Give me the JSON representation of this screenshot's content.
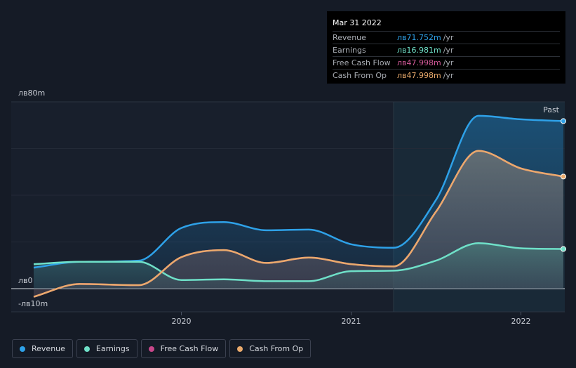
{
  "tooltip": {
    "date": "Mar 31 2022",
    "rows": [
      {
        "label": "Revenue",
        "value": "лв71.752m",
        "unit": "/yr",
        "color": "#2ea1e8"
      },
      {
        "label": "Earnings",
        "value": "лв16.981m",
        "unit": "/yr",
        "color": "#6fe0c8"
      },
      {
        "label": "Free Cash Flow",
        "value": "лв47.998m",
        "unit": "/yr",
        "color": "#d55a9a"
      },
      {
        "label": "Cash From Op",
        "value": "лв47.998m",
        "unit": "/yr",
        "color": "#eaaa6c"
      }
    ]
  },
  "legend": [
    {
      "label": "Revenue",
      "color": "#2ea1e8"
    },
    {
      "label": "Earnings",
      "color": "#6fe0c8"
    },
    {
      "label": "Free Cash Flow",
      "color": "#c8478a"
    },
    {
      "label": "Cash From Op",
      "color": "#eaaa6c"
    }
  ],
  "chart_data": {
    "type": "area",
    "y_tick_labels": [
      "лв80m",
      "лв0",
      "-лв10m"
    ],
    "y_tick_values": [
      80,
      0,
      -10
    ],
    "ylim": [
      -10,
      80
    ],
    "x_tick_labels": [
      "2020",
      "2021",
      "2022"
    ],
    "x_tick_values": [
      2020,
      2021,
      2022
    ],
    "xlim": [
      2019.13,
      2022.25
    ],
    "past_label": "Past",
    "past_start": 2021.25,
    "gridlines": [
      60,
      40,
      20
    ],
    "series": [
      {
        "name": "Revenue",
        "color": "#2ea1e8",
        "x": [
          2019.13,
          2019.4,
          2019.75,
          2020.0,
          2020.25,
          2020.5,
          2020.75,
          2021.0,
          2021.25,
          2021.5,
          2021.75,
          2022.0,
          2022.25
        ],
        "y": [
          9.0,
          11.5,
          12.0,
          26.0,
          28.5,
          25.0,
          25.3,
          19.0,
          17.5,
          38.0,
          74.0,
          72.5,
          71.75
        ]
      },
      {
        "name": "Earnings",
        "color": "#6fe0c8",
        "x": [
          2019.13,
          2019.4,
          2019.75,
          2020.0,
          2020.25,
          2020.5,
          2020.75,
          2021.0,
          2021.25,
          2021.5,
          2021.75,
          2022.0,
          2022.25
        ],
        "y": [
          10.5,
          11.5,
          11.5,
          3.7,
          4.0,
          3.2,
          3.2,
          7.5,
          7.7,
          12.0,
          19.5,
          17.3,
          16.98
        ]
      },
      {
        "name": "Free Cash Flow",
        "color": "#c8478a",
        "x": [
          2019.13,
          2019.4,
          2019.75,
          2020.0,
          2020.25,
          2020.5,
          2020.75,
          2021.0,
          2021.25,
          2021.5,
          2021.75,
          2022.0,
          2022.25
        ],
        "y": [
          -3.5,
          2.0,
          1.5,
          13.5,
          16.5,
          11.0,
          13.3,
          10.5,
          9.5,
          33.0,
          59.0,
          51.5,
          48.0
        ]
      },
      {
        "name": "Cash From Op",
        "color": "#eaaa6c",
        "x": [
          2019.13,
          2019.4,
          2019.75,
          2020.0,
          2020.25,
          2020.5,
          2020.75,
          2021.0,
          2021.25,
          2021.5,
          2021.75,
          2022.0,
          2022.25
        ],
        "y": [
          -3.5,
          2.0,
          1.5,
          13.5,
          16.5,
          11.0,
          13.3,
          10.5,
          9.5,
          33.0,
          59.0,
          51.5,
          48.0
        ]
      }
    ]
  }
}
